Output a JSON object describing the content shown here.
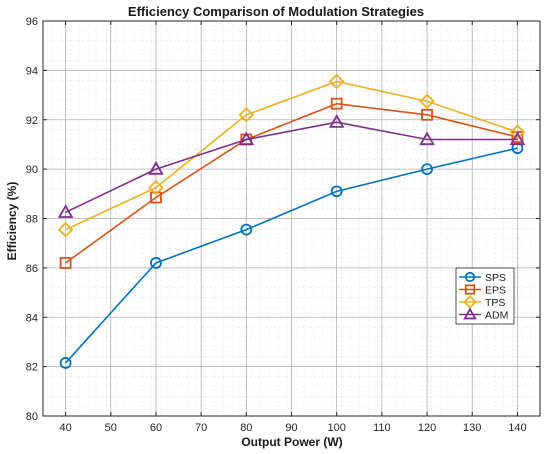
{
  "chart_data": {
    "type": "line",
    "title": "Efficiency Comparison of Modulation Strategies",
    "xlabel": "Output Power (W)",
    "ylabel": "Efficiency (%)",
    "xlim": [
      35,
      145
    ],
    "ylim": [
      80,
      96
    ],
    "xticks": [
      40,
      50,
      60,
      70,
      80,
      90,
      100,
      110,
      120,
      130,
      140
    ],
    "yticks": [
      80,
      82,
      84,
      86,
      88,
      90,
      92,
      94,
      96
    ],
    "grid": true,
    "minor_grid": true,
    "legend_position": "right",
    "x": [
      40,
      60,
      80,
      100,
      120,
      140
    ],
    "series": [
      {
        "name": "SPS",
        "color": "#0072BD",
        "marker": "circle",
        "values": [
          82.15,
          86.2,
          87.55,
          89.1,
          90.0,
          90.85
        ]
      },
      {
        "name": "EPS",
        "color": "#D95319",
        "marker": "square",
        "values": [
          86.2,
          88.85,
          91.2,
          92.65,
          92.2,
          91.3
        ]
      },
      {
        "name": "TPS",
        "color": "#EDB120",
        "marker": "diamond",
        "values": [
          87.55,
          89.25,
          92.2,
          93.55,
          92.75,
          91.5
        ]
      },
      {
        "name": "ADM",
        "color": "#7E2F8E",
        "marker": "triangle",
        "values": [
          88.25,
          90.0,
          91.2,
          91.9,
          91.2,
          91.2
        ]
      }
    ]
  }
}
